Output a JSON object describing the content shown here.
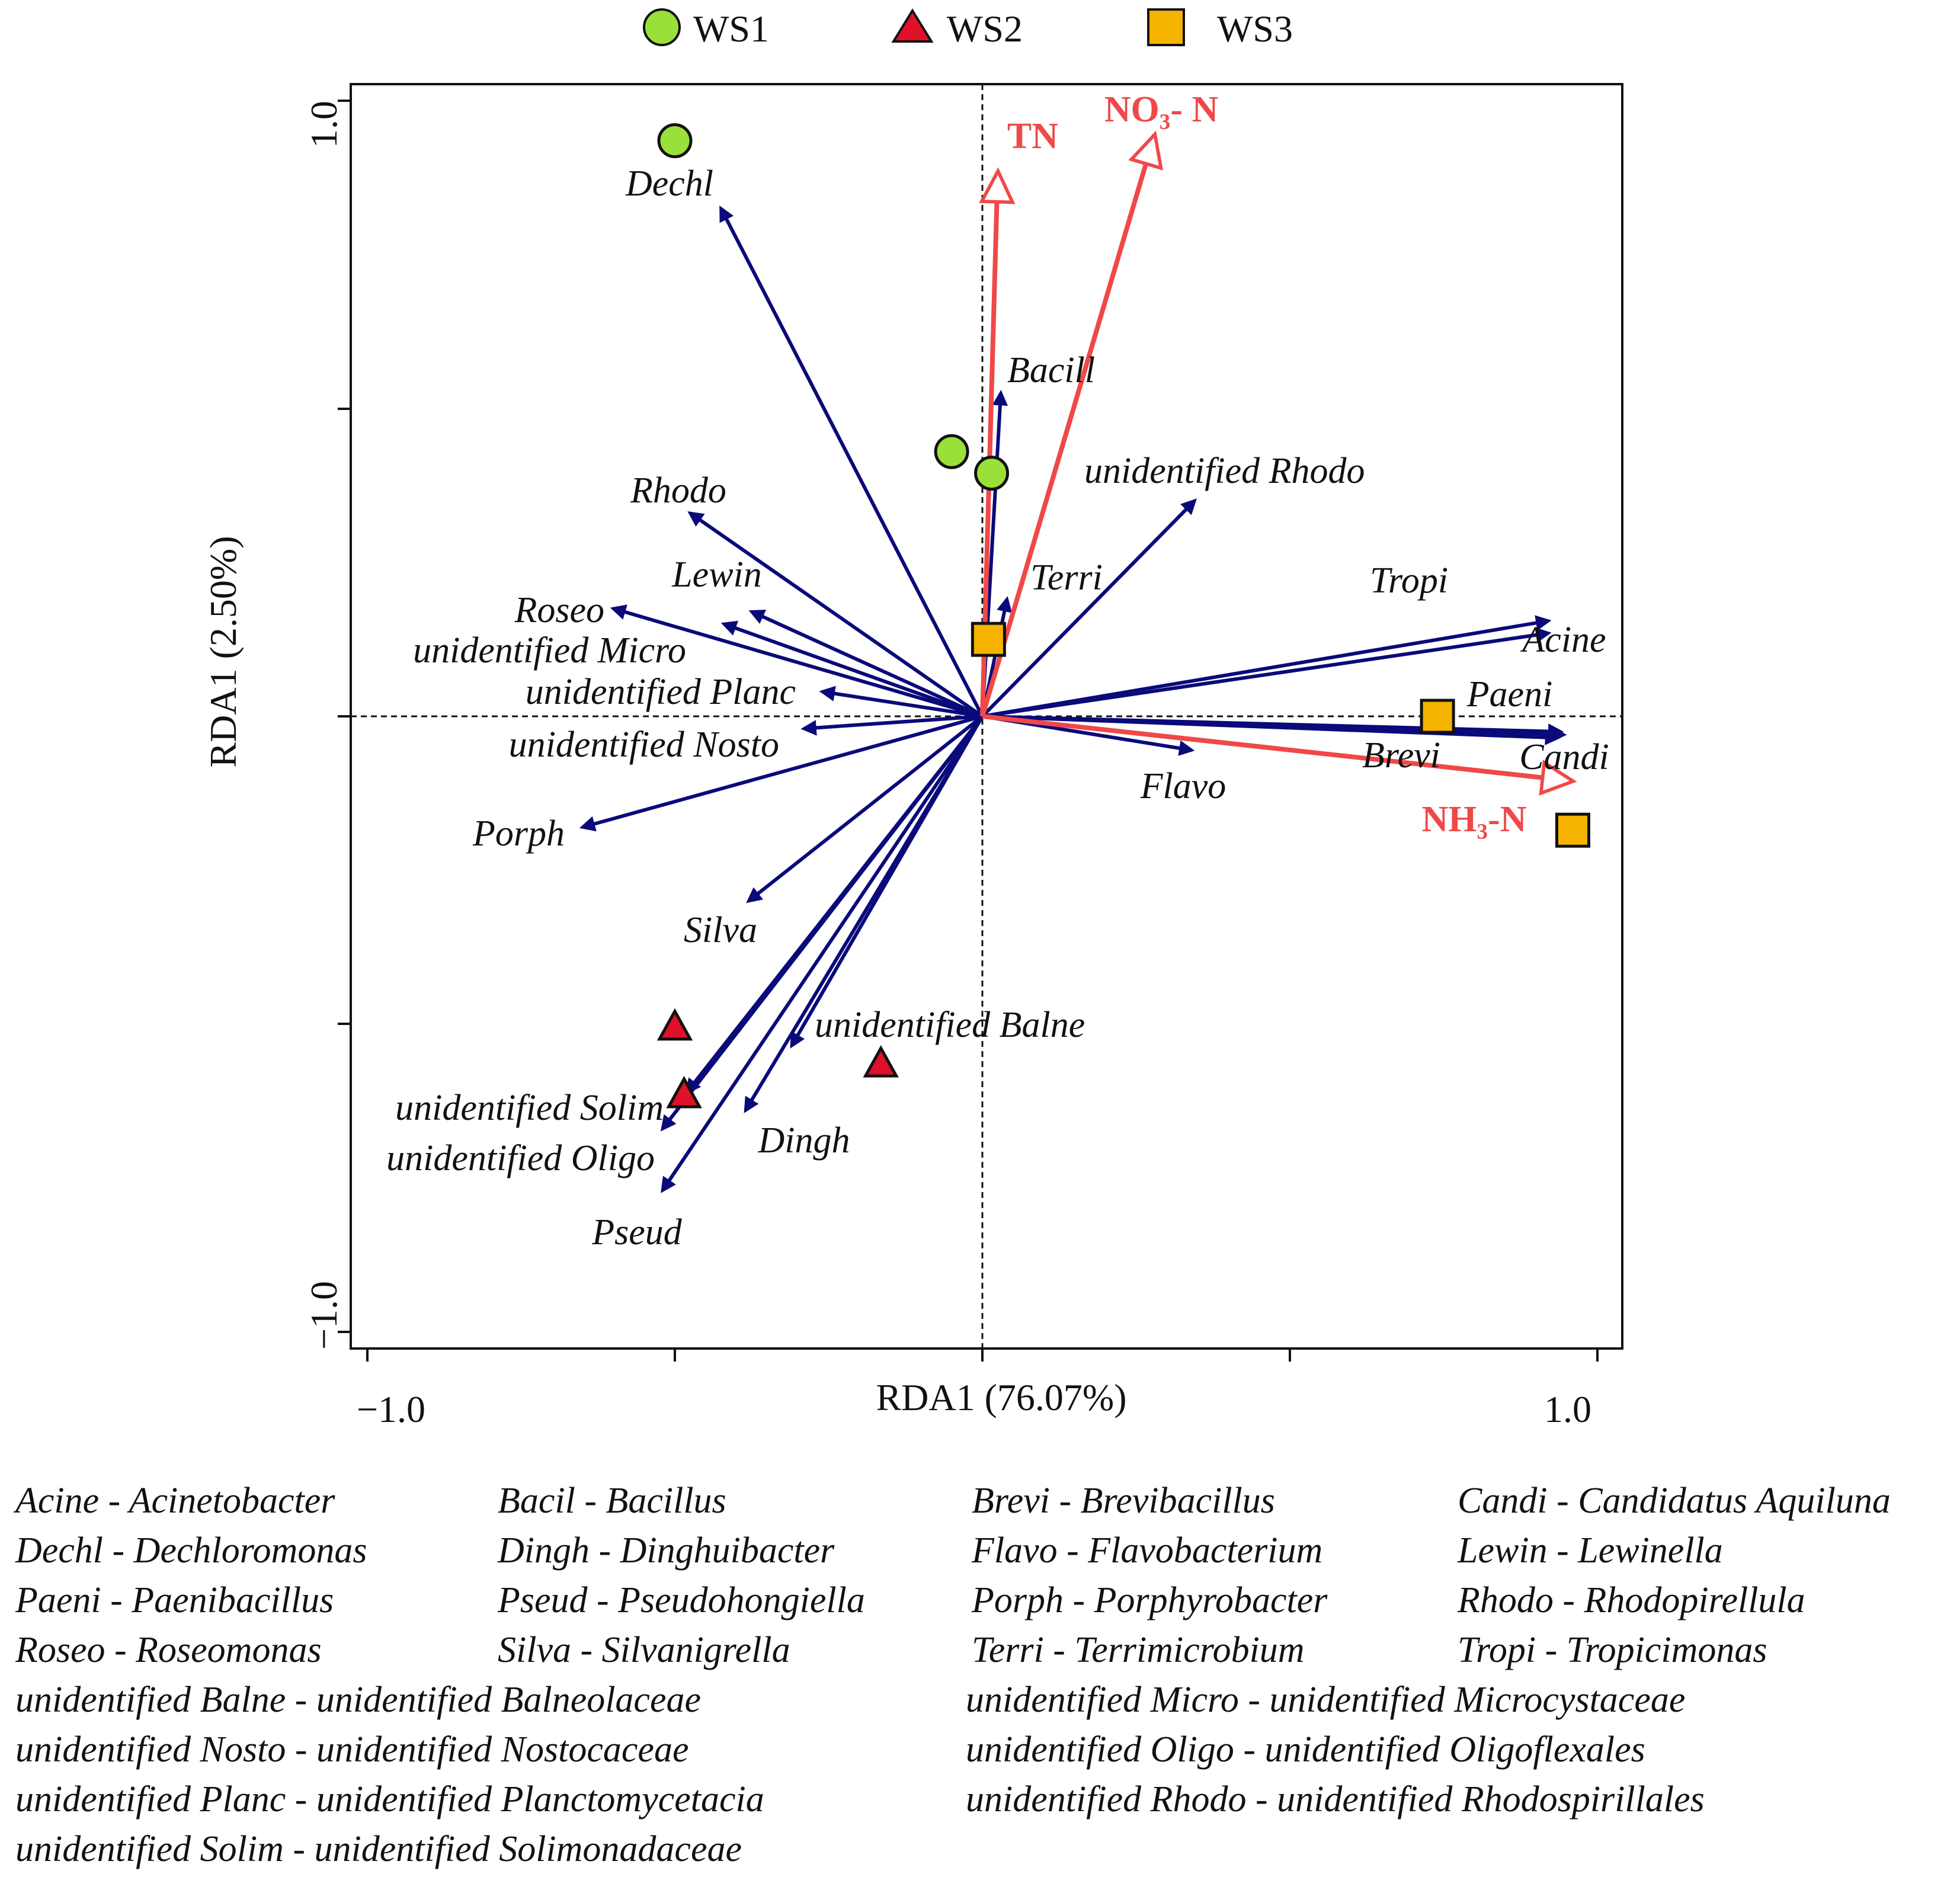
{
  "chart_data": {
    "type": "scatter",
    "subtype": "RDA biplot",
    "xlabel": "RDA1 (76.07%)",
    "ylabel": "RDA1 (2.50%)",
    "xlim": [
      -1.0,
      1.0
    ],
    "ylim": [
      -1.0,
      1.0
    ],
    "xtick_labels": [
      "−1.0",
      "1.0"
    ],
    "ytick_labels": [
      "1.0",
      "−1.0"
    ],
    "legend": [
      {
        "name": "WS1",
        "marker": "circle",
        "color": "#99E03A"
      },
      {
        "name": "WS2",
        "marker": "triangle",
        "color": "#E0102A"
      },
      {
        "name": "WS3",
        "marker": "square",
        "color": "#F5B300"
      }
    ],
    "samples": [
      {
        "group": "WS1",
        "x": -0.5,
        "y": 0.935
      },
      {
        "group": "WS1",
        "x": -0.05,
        "y": 0.43
      },
      {
        "group": "WS1",
        "x": 0.015,
        "y": 0.395
      },
      {
        "group": "WS2",
        "x": -0.5,
        "y": -0.505
      },
      {
        "group": "WS2",
        "x": -0.485,
        "y": -0.615
      },
      {
        "group": "WS2",
        "x": -0.165,
        "y": -0.565
      },
      {
        "group": "WS3",
        "x": 0.01,
        "y": 0.125
      },
      {
        "group": "WS3",
        "x": 0.74,
        "y": 0.0
      },
      {
        "group": "WS3",
        "x": 0.96,
        "y": -0.185
      }
    ],
    "env_vectors": [
      {
        "name": "TN",
        "x": 0.025,
        "y": 0.885
      },
      {
        "name": "NO₃- N",
        "x": 0.28,
        "y": 0.945
      },
      {
        "name": "NH₃-N",
        "x": 0.96,
        "y": -0.105
      }
    ],
    "species_vectors": [
      {
        "name": "Dechl",
        "x": -0.425,
        "y": 0.825
      },
      {
        "name": "Bacill",
        "x": 0.03,
        "y": 0.525
      },
      {
        "name": "unidentified Rhodo",
        "x": 0.345,
        "y": 0.35
      },
      {
        "name": "Rhodo",
        "x": -0.475,
        "y": 0.33
      },
      {
        "name": "Lewin",
        "x": -0.375,
        "y": 0.17
      },
      {
        "name": "Roseo",
        "x": -0.6,
        "y": 0.175
      },
      {
        "name": "unidentified Micro",
        "x": -0.42,
        "y": 0.15
      },
      {
        "name": "unidentified Planc",
        "x": -0.26,
        "y": 0.04
      },
      {
        "name": "unidentified Nosto",
        "x": -0.29,
        "y": -0.02
      },
      {
        "name": "Porph",
        "x": -0.65,
        "y": -0.18
      },
      {
        "name": "Silva",
        "x": -0.38,
        "y": -0.3
      },
      {
        "name": "Terri",
        "x": 0.04,
        "y": 0.19
      },
      {
        "name": "Tropi",
        "x": 0.92,
        "y": 0.155
      },
      {
        "name": "Acine",
        "x": 0.92,
        "y": 0.135
      },
      {
        "name": "Paeni",
        "x": 0.94,
        "y": -0.025
      },
      {
        "name": "Brevi",
        "x": 0.935,
        "y": -0.035
      },
      {
        "name": "Candi",
        "x": 0.945,
        "y": -0.03
      },
      {
        "name": "Flavo",
        "x": 0.34,
        "y": -0.055
      },
      {
        "name": "unidentified Balne",
        "x": -0.31,
        "y": -0.535
      },
      {
        "name": "unidentified Solim",
        "x": -0.48,
        "y": -0.61
      },
      {
        "name": "unidentified Oligo",
        "x": -0.52,
        "y": -0.67
      },
      {
        "name": "Pseud",
        "x": -0.52,
        "y": -0.77
      },
      {
        "name": "Dingh",
        "x": -0.385,
        "y": -0.64
      }
    ]
  },
  "abbreviations": [
    "Acine - Acinetobacter",
    "Bacil - Bacillus",
    "Brevi - Brevibacillus",
    "Candi - Candidatus Aquiluna",
    "Dechl - Dechloromonas",
    "Dingh - Dinghuibacter",
    "Flavo - Flavobacterium",
    "Lewin - Lewinella",
    "Paeni - Paenibacillus",
    "Pseud - Pseudohongiella",
    "Porph - Porphyrobacter",
    "Rhodo - Rhodopirellula",
    "Roseo - Roseomonas",
    "Silva - Silvanigrella",
    "Terri - Terrimicrobium",
    "Tropi - Tropicimonas",
    "unidentified Balne - unidentified Balneolaceae",
    "unidentified Micro - unidentified Microcystaceae",
    "unidentified Nosto - unidentified Nostocaceae",
    "unidentified Oligo - unidentified Oligoflexales",
    "unidentified Planc - unidentified Planctomycetacia",
    "unidentified Rhodo - unidentified Rhodospirillales",
    "unidentified Solim - unidentified Solimonadaceae"
  ],
  "colors": {
    "species_arrow": "#0A0A7A",
    "env_arrow": "#F04848",
    "WS1": "#99E03A",
    "WS2": "#E0102A",
    "WS3": "#F5B300"
  }
}
